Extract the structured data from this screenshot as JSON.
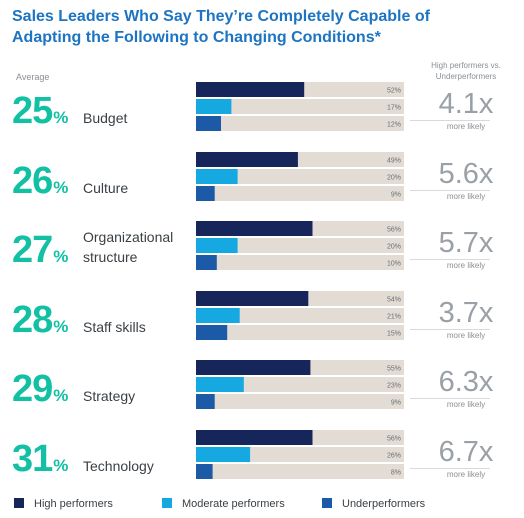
{
  "title": "Sales Leaders Who Say They’re Completely Capable of Adapting the Following to Changing Conditions*",
  "average_header": "Average",
  "ratio_header": "High performers vs. Underperformers",
  "colors": {
    "high": "#16255a",
    "moderate": "#16a8e0",
    "under": "#1c5aa8",
    "track": "#e2dcd5",
    "percent": "#12c0a4",
    "title": "#1d74c2"
  },
  "legend": {
    "high": "High performers",
    "moderate": "Moderate performers",
    "under": "Underperformers"
  },
  "chart_data": {
    "type": "bar",
    "orientation": "horizontal",
    "xlim": [
      0,
      100
    ],
    "series_names": [
      "High performers",
      "Moderate performers",
      "Underperformers"
    ],
    "rows": [
      {
        "category": "Budget",
        "average": "25",
        "pct_sign": "%",
        "values": [
          52,
          17,
          12
        ],
        "value_labels": [
          "52%",
          "17%",
          "12%"
        ],
        "multiplier": "4.1x",
        "more": "more likely"
      },
      {
        "category": "Culture",
        "average": "26",
        "pct_sign": "%",
        "values": [
          49,
          20,
          9
        ],
        "value_labels": [
          "49%",
          "20%",
          "9%"
        ],
        "multiplier": "5.6x",
        "more": "more likely"
      },
      {
        "category": "Organizational structure",
        "category_lines": [
          "Organizational",
          "structure"
        ],
        "average": "27",
        "pct_sign": "%",
        "values": [
          56,
          20,
          10
        ],
        "value_labels": [
          "56%",
          "20%",
          "10%"
        ],
        "multiplier": "5.7x",
        "more": "more likely"
      },
      {
        "category": "Staff skills",
        "average": "28",
        "pct_sign": "%",
        "values": [
          54,
          21,
          15
        ],
        "value_labels": [
          "54%",
          "21%",
          "15%"
        ],
        "multiplier": "3.7x",
        "more": "more likely"
      },
      {
        "category": "Strategy",
        "average": "29",
        "pct_sign": "%",
        "values": [
          55,
          23,
          9
        ],
        "value_labels": [
          "55%",
          "23%",
          "9%"
        ],
        "multiplier": "6.3x",
        "more": "more likely"
      },
      {
        "category": "Technology",
        "average": "31",
        "pct_sign": "%",
        "values": [
          56,
          26,
          8
        ],
        "value_labels": [
          "56%",
          "26%",
          "8%"
        ],
        "multiplier": "6.7x",
        "more": "more likely"
      }
    ]
  }
}
